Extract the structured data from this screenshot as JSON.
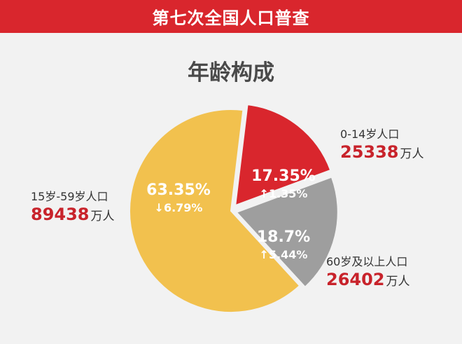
{
  "banner": {
    "title": "第七次全国人口普查"
  },
  "chart_data": {
    "type": "pie",
    "title": "年龄构成",
    "slices": [
      {
        "key": "age_0_14",
        "label": "0-14岁人口",
        "population": 25338,
        "unit": "万人",
        "percent": 17.35,
        "percent_text": "17.35%",
        "change": 1.35,
        "change_text": "↑1.35%",
        "color": "#d9262d"
      },
      {
        "key": "age_60_plus",
        "label": "60岁及以上人口",
        "population": 26402,
        "unit": "万人",
        "percent": 18.7,
        "percent_text": "18.7%",
        "change": 5.44,
        "change_text": "↑5.44%",
        "color": "#9e9e9e"
      },
      {
        "key": "age_15_59",
        "label": "15岁-59岁人口",
        "population": 89438,
        "unit": "万人",
        "percent": 63.35,
        "percent_text": "63.35%",
        "change": -6.79,
        "change_text": "↓6.79%",
        "color": "#f2c14e"
      }
    ]
  }
}
